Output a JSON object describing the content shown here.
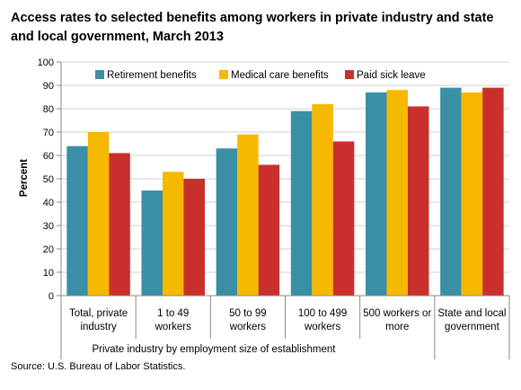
{
  "chart_data": {
    "type": "bar",
    "title": "Access rates to selected benefits among workers in private industry and state and local government, March 2013",
    "ylabel": "Percent",
    "xlabel": "Private industry by employment size of establishment",
    "ylim": [
      0,
      100
    ],
    "yticks": [
      0,
      10,
      20,
      30,
      40,
      50,
      60,
      70,
      80,
      90,
      100
    ],
    "grid": true,
    "legend_position": "top",
    "categories": [
      [
        "Total, private",
        "industry"
      ],
      [
        "1 to 49",
        "workers"
      ],
      [
        "50 to 99",
        "workers"
      ],
      [
        "100 to 499",
        "workers"
      ],
      [
        "500 workers or",
        "more"
      ],
      [
        "State and local",
        "government"
      ]
    ],
    "series": [
      {
        "name": "Retirement benefits",
        "color": "#3a8fa6",
        "values": [
          64,
          45,
          63,
          79,
          87,
          89
        ]
      },
      {
        "name": "Medical care benefits",
        "color": "#f7b800",
        "values": [
          70,
          53,
          69,
          82,
          88,
          87
        ]
      },
      {
        "name": "Paid sick leave",
        "color": "#c9302c",
        "values": [
          61,
          50,
          56,
          66,
          81,
          89
        ]
      }
    ]
  },
  "source": "Source: U.S. Bureau of Labor Statistics."
}
